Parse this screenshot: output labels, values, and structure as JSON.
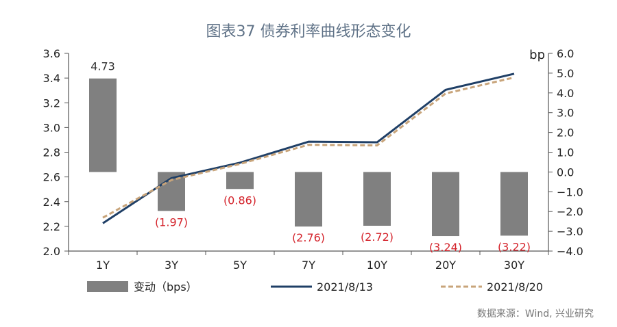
{
  "title": "图表37  债券利率曲线形态变化",
  "source": "数据来源：Wind, 兴业研究",
  "chart_data": {
    "type": "bar+line",
    "categories": [
      "1Y",
      "3Y",
      "5Y",
      "7Y",
      "10Y",
      "20Y",
      "30Y"
    ],
    "left_axis": {
      "ylim": [
        2.0,
        3.6
      ],
      "ticks": [
        "2.0",
        "2.2",
        "2.4",
        "2.6",
        "2.8",
        "3.0",
        "3.2",
        "3.4",
        "3.6"
      ]
    },
    "right_axis": {
      "unit": "bp",
      "ylim": [
        -4.0,
        6.0
      ],
      "ticks": [
        "-4.0",
        "-3.0",
        "-2.0",
        "-1.0",
        "0.0",
        "1.0",
        "2.0",
        "3.0",
        "4.0",
        "5.0",
        "6.0"
      ]
    },
    "bars": {
      "name": "变动（bps）",
      "color": "#808080",
      "values": [
        4.73,
        -1.97,
        -0.86,
        -2.76,
        -2.72,
        -3.24,
        -3.22
      ],
      "labels": [
        "4.73",
        "(1.97)",
        "(0.86)",
        "(2.76)",
        "(2.72)",
        "(3.24)",
        "(3.22)"
      ],
      "label_colors": [
        "#333333",
        "#d4232b",
        "#d4232b",
        "#d4232b",
        "#d4232b",
        "#d4232b",
        "#d4232b"
      ]
    },
    "series": [
      {
        "name": "2021/8/13",
        "color": "#1f3f66",
        "style": "solid",
        "values": [
          2.225,
          2.59,
          2.715,
          2.885,
          2.88,
          3.305,
          3.435
        ]
      },
      {
        "name": "2021/8/20",
        "color": "#c8a47a",
        "style": "dashed",
        "values": [
          2.27,
          2.575,
          2.705,
          2.86,
          2.855,
          3.275,
          3.405
        ]
      }
    ]
  }
}
